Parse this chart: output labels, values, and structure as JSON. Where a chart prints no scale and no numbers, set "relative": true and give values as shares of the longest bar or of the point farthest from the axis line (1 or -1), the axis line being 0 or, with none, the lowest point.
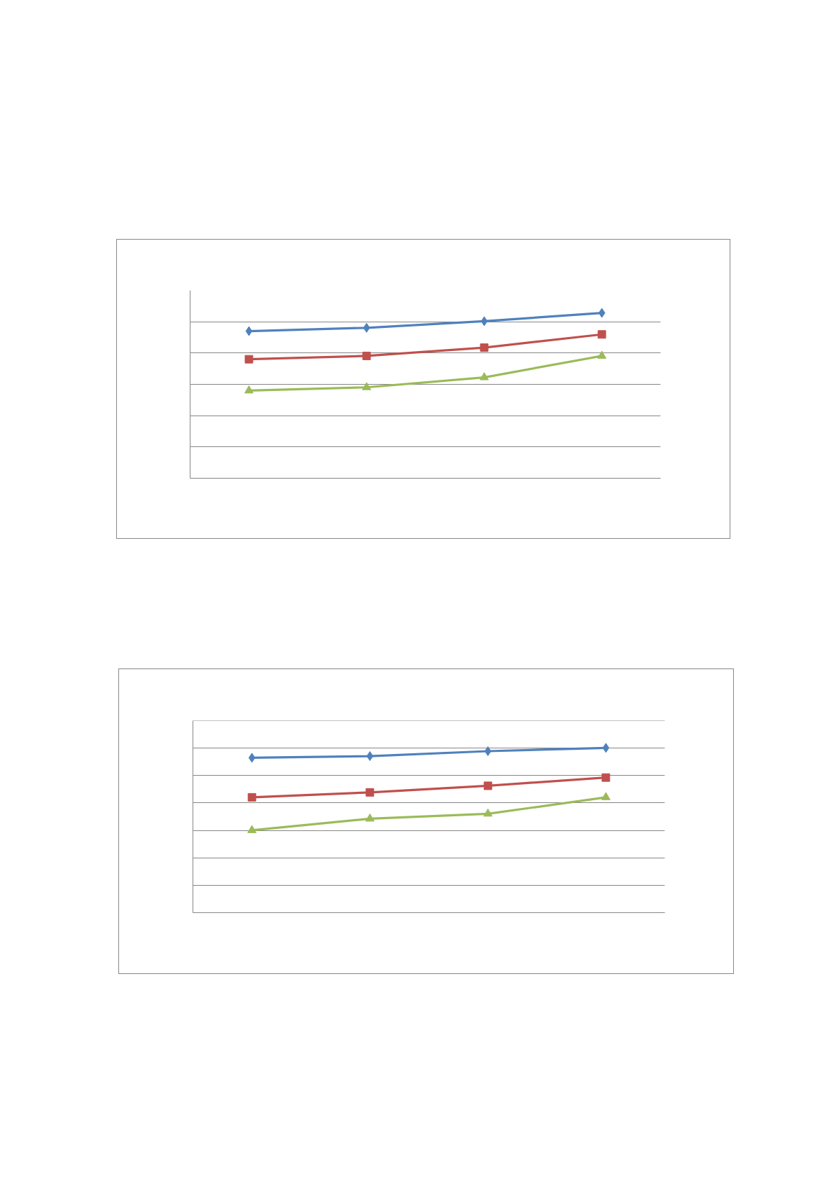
{
  "chart_data": [
    {
      "type": "line",
      "categories": [
        null,
        null,
        null,
        null
      ],
      "relative": true,
      "grid": "y",
      "series": [
        {
          "color": "#4f81bd",
          "marker": "diamond",
          "values": [
            0.89,
            0.91,
            0.95,
            1
          ]
        },
        {
          "color": "#c0504d",
          "marker": "square",
          "values": [
            0.72,
            0.74,
            0.79,
            0.87
          ]
        },
        {
          "color": "#9bbb59",
          "marker": "triangle",
          "values": [
            0.53,
            0.55,
            0.61,
            0.74
          ]
        }
      ]
    },
    {
      "type": "line",
      "categories": [
        null,
        null,
        null,
        null
      ],
      "relative": true,
      "grid": "y",
      "series": [
        {
          "color": "#4f81bd",
          "marker": "diamond",
          "values": [
            0.94,
            0.95,
            0.98,
            1
          ]
        },
        {
          "color": "#c0504d",
          "marker": "square",
          "values": [
            0.7,
            0.73,
            0.77,
            0.82
          ]
        },
        {
          "color": "#9bbb59",
          "marker": "triangle",
          "values": [
            0.5,
            0.57,
            0.6,
            0.7
          ]
        }
      ]
    }
  ]
}
